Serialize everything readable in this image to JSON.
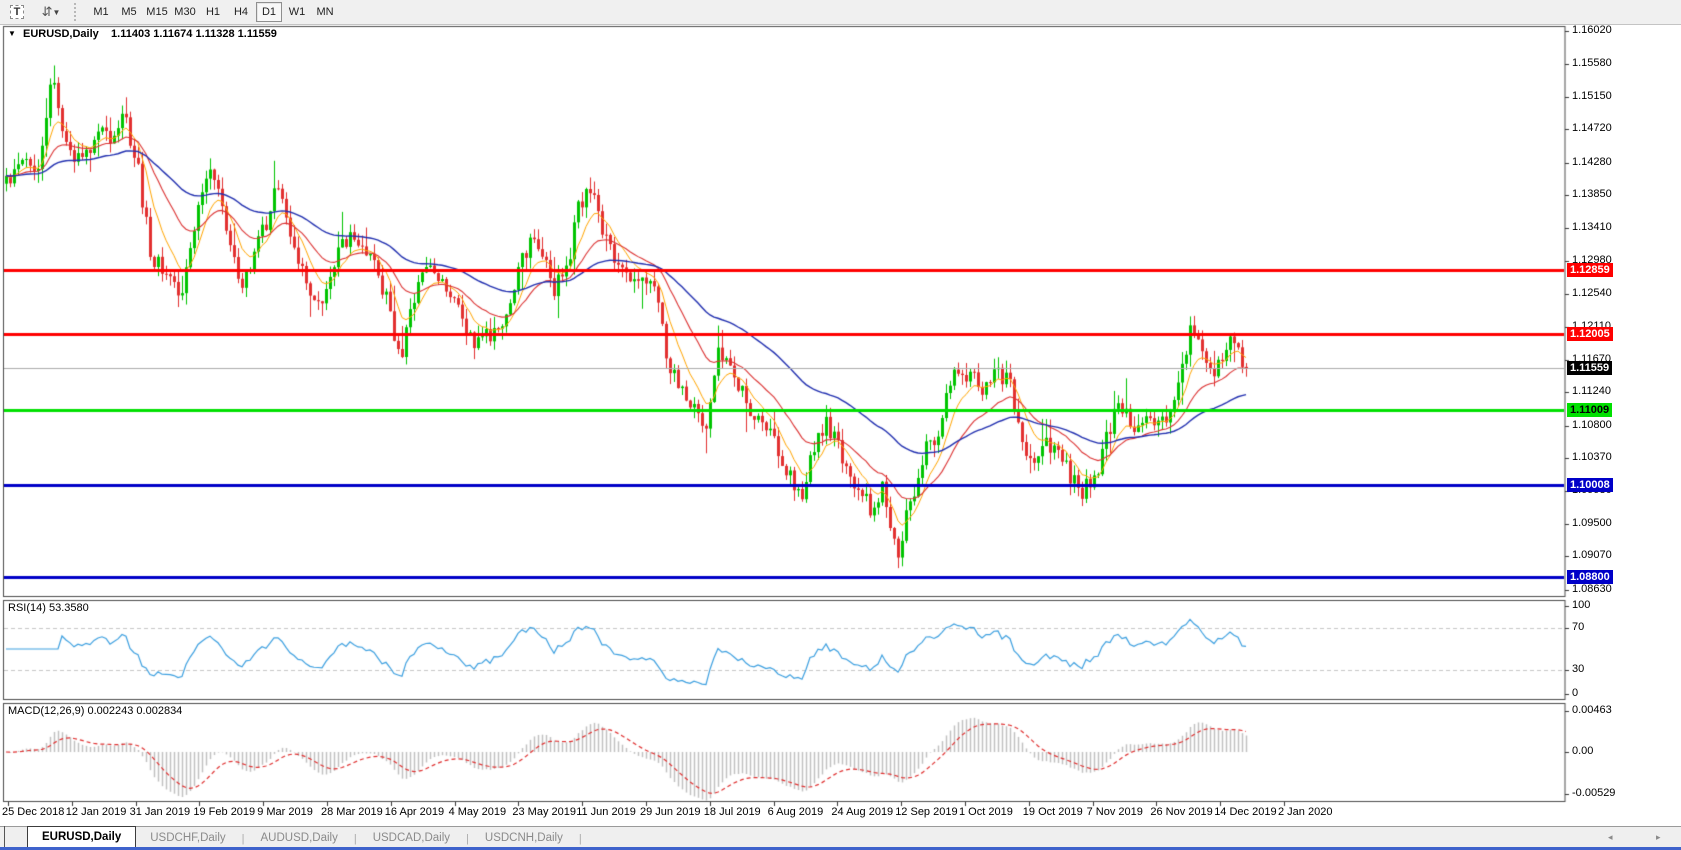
{
  "toolbar": {
    "text_tool_label": "T",
    "timeframes": [
      {
        "label": "M1",
        "active": false
      },
      {
        "label": "M5",
        "active": false
      },
      {
        "label": "M15",
        "active": false
      },
      {
        "label": "M30",
        "active": false
      },
      {
        "label": "H1",
        "active": false
      },
      {
        "label": "H4",
        "active": false
      },
      {
        "label": "D1",
        "active": true
      },
      {
        "label": "W1",
        "active": false
      },
      {
        "label": "MN",
        "active": false
      }
    ]
  },
  "chart": {
    "symbol": "EURUSD,Daily",
    "ohlc": "1.11403 1.11674 1.11328 1.11559",
    "colors": {
      "up": "#00c400",
      "down": "#e23030",
      "ma_fast": "#ffa500",
      "ma_mid": "#dc3232",
      "ma_slow": "#2230b0",
      "panel_border": "#4a4a4a",
      "current_line": "#ababab"
    }
  },
  "price_axis": {
    "ticks": [
      "1.16020",
      "1.15580",
      "1.15150",
      "1.14720",
      "1.14280",
      "1.13850",
      "1.13410",
      "1.12980",
      "1.12540",
      "1.12110",
      "1.11670",
      "1.11240",
      "1.10800",
      "1.10370",
      "1.09930",
      "1.09500",
      "1.09070",
      "1.08630"
    ],
    "current_badge": {
      "text": "1.11559",
      "bg": "#000000",
      "fg": "#ffffff",
      "price": 1.11559
    }
  },
  "levels": [
    {
      "price": 1.12859,
      "text": "1.12859",
      "color": "#ff0000",
      "badge_fg": "#ffffff",
      "thickness": 3
    },
    {
      "price": 1.12005,
      "text": "1.12005",
      "color": "#ff0000",
      "badge_fg": "#ffffff",
      "thickness": 3
    },
    {
      "price": 1.11009,
      "text": "1.11009",
      "color": "#00e000",
      "badge_fg": "#000000",
      "thickness": 3
    },
    {
      "price": 1.10008,
      "text": "1.10008",
      "color": "#0000c8",
      "badge_fg": "#ffffff",
      "thickness": 3
    },
    {
      "price": 1.088,
      "text": "1.08800",
      "color": "#0000c8",
      "badge_fg": "#ffffff",
      "thickness": 3
    }
  ],
  "chart_data": {
    "type": "candlestick",
    "symbol": "EURUSD",
    "timeframe": "Daily",
    "title": "EURUSD,Daily 1.11403 1.11674 1.11328 1.11559",
    "visible_price_range": [
      1.0854,
      1.1607
    ],
    "last_close": 1.11559,
    "price_path_keypoints": [
      [
        6,
        1.14
      ],
      [
        20,
        1.1445
      ],
      [
        40,
        1.142
      ],
      [
        52,
        1.154
      ],
      [
        58,
        1.15
      ],
      [
        70,
        1.1445
      ],
      [
        85,
        1.143
      ],
      [
        100,
        1.147
      ],
      [
        112,
        1.1445
      ],
      [
        122,
        1.15
      ],
      [
        135,
        1.144
      ],
      [
        150,
        1.131
      ],
      [
        163,
        1.128
      ],
      [
        180,
        1.1245
      ],
      [
        195,
        1.135
      ],
      [
        208,
        1.143
      ],
      [
        222,
        1.137
      ],
      [
        240,
        1.1255
      ],
      [
        252,
        1.13
      ],
      [
        265,
        1.1345
      ],
      [
        278,
        1.14
      ],
      [
        290,
        1.1335
      ],
      [
        305,
        1.128
      ],
      [
        320,
        1.1225
      ],
      [
        335,
        1.13
      ],
      [
        348,
        1.133
      ],
      [
        362,
        1.132
      ],
      [
        375,
        1.1285
      ],
      [
        388,
        1.124
      ],
      [
        400,
        1.1165
      ],
      [
        412,
        1.1235
      ],
      [
        422,
        1.1295
      ],
      [
        435,
        1.128
      ],
      [
        450,
        1.125
      ],
      [
        462,
        1.122
      ],
      [
        478,
        1.1185
      ],
      [
        492,
        1.1205
      ],
      [
        505,
        1.123
      ],
      [
        518,
        1.129
      ],
      [
        530,
        1.132
      ],
      [
        542,
        1.1315
      ],
      [
        555,
        1.126
      ],
      [
        568,
        1.1295
      ],
      [
        580,
        1.138
      ],
      [
        592,
        1.1385
      ],
      [
        605,
        1.133
      ],
      [
        618,
        1.1285
      ],
      [
        630,
        1.127
      ],
      [
        642,
        1.128
      ],
      [
        655,
        1.1255
      ],
      [
        668,
        1.116
      ],
      [
        680,
        1.1125
      ],
      [
        693,
        1.11
      ],
      [
        705,
        1.1075
      ],
      [
        718,
        1.1185
      ],
      [
        728,
        1.117
      ],
      [
        740,
        1.113
      ],
      [
        752,
        1.11
      ],
      [
        765,
        1.108
      ],
      [
        778,
        1.105
      ],
      [
        790,
        1.1015
      ],
      [
        800,
        1.0985
      ],
      [
        812,
        1.104
      ],
      [
        825,
        1.1085
      ],
      [
        838,
        1.105
      ],
      [
        850,
        1.1
      ],
      [
        862,
        1.0985
      ],
      [
        872,
        1.0965
      ],
      [
        883,
        1.1
      ],
      [
        893,
        1.0935
      ],
      [
        898,
        1.0905
      ],
      [
        905,
        1.096
      ],
      [
        915,
        1.1
      ],
      [
        925,
        1.1045
      ],
      [
        938,
        1.1075
      ],
      [
        950,
        1.114
      ],
      [
        960,
        1.1155
      ],
      [
        972,
        1.114
      ],
      [
        985,
        1.113
      ],
      [
        998,
        1.1155
      ],
      [
        1010,
        1.113
      ],
      [
        1022,
        1.106
      ],
      [
        1032,
        1.104
      ],
      [
        1045,
        1.1062
      ],
      [
        1058,
        1.1045
      ],
      [
        1070,
        1.101
      ],
      [
        1082,
        1.0995
      ],
      [
        1095,
        1.1015
      ],
      [
        1108,
        1.107
      ],
      [
        1118,
        1.112
      ],
      [
        1128,
        1.1085
      ],
      [
        1140,
        1.107
      ],
      [
        1152,
        1.109
      ],
      [
        1162,
        1.108
      ],
      [
        1172,
        1.1115
      ],
      [
        1182,
        1.116
      ],
      [
        1192,
        1.121
      ],
      [
        1202,
        1.118
      ],
      [
        1212,
        1.115
      ],
      [
        1222,
        1.117
      ],
      [
        1232,
        1.1195
      ],
      [
        1246,
        1.1156
      ]
    ],
    "moving_averages": [
      {
        "name": "fast",
        "type": "ema",
        "period": 8,
        "color": "#ffa500"
      },
      {
        "name": "mid",
        "type": "ema",
        "period": 21,
        "color": "#dc3232"
      },
      {
        "name": "slow",
        "type": "ema",
        "period": 55,
        "color": "#2230b0"
      }
    ]
  },
  "rsi": {
    "label": "RSI(14)",
    "value": "53.3580",
    "axis": [
      {
        "text": "100",
        "v": 100
      },
      {
        "text": "70",
        "v": 70
      },
      {
        "text": "30",
        "v": 30
      },
      {
        "text": "0",
        "v": 0
      }
    ],
    "dashed_levels": [
      70,
      30
    ],
    "color": "#3da0e0"
  },
  "macd": {
    "label": "MACD(12,26,9)",
    "values": "0.002243 0.002834",
    "axis": [
      {
        "text": "0.00463",
        "v": 0.00463
      },
      {
        "text": "0.00",
        "v": 0
      },
      {
        "text": "-0.00529",
        "v": -0.00529
      }
    ],
    "histogram_color": "#c0c0c0",
    "signal_color": "#e03030"
  },
  "date_axis": {
    "labels": [
      "25 Dec 2018",
      "12 Jan 2019",
      "31 Jan 2019",
      "19 Feb 2019",
      "9 Mar 2019",
      "28 Mar 2019",
      "16 Apr 2019",
      "4 May 2019",
      "23 May 2019",
      "11 Jun 2019",
      "29 Jun 2019",
      "18 Jul 2019",
      "6 Aug 2019",
      "24 Aug 2019",
      "12 Sep 2019",
      "1 Oct 2019",
      "19 Oct 2019",
      "7 Nov 2019",
      "26 Nov 2019",
      "14 Dec 2019",
      "2 Jan 2020"
    ]
  },
  "tabs": {
    "items": [
      {
        "label": "EURUSD,Daily",
        "active": true
      },
      {
        "label": "USDCHF,Daily",
        "active": false
      },
      {
        "label": "AUDUSD,Daily",
        "active": false
      },
      {
        "label": "USDCAD,Daily",
        "active": false
      },
      {
        "label": "USDCNH,Daily",
        "active": false
      }
    ],
    "scroll_left": "◂",
    "scroll_right": "▸"
  }
}
